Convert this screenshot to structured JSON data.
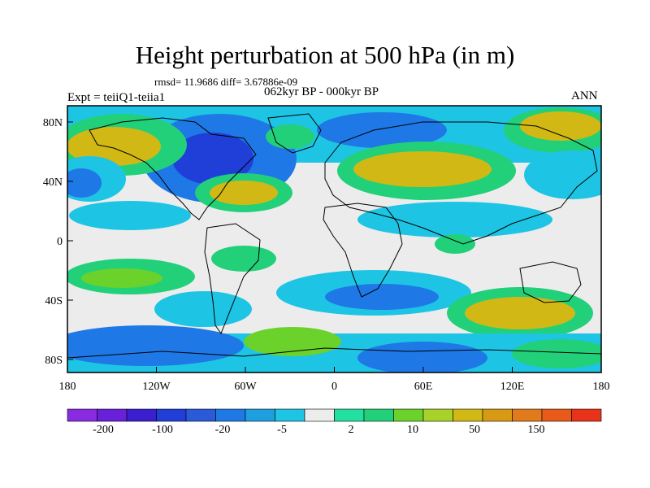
{
  "title": "Height perturbation at 500 hPa (in m)",
  "stats": "rmsd= 11.9686 diff= 3.67886e-09",
  "period": "062kyr BP - 000kyr BP",
  "experiment": "Expt = teiiQ1-teiia1",
  "season": "ANN",
  "y_ticks": [
    "80N",
    "40N",
    "0",
    "40S",
    "80S"
  ],
  "x_ticks": [
    "180",
    "120W",
    "60W",
    "0",
    "60E",
    "120E",
    "180"
  ],
  "colorbar": {
    "labels": [
      "-200",
      "-100",
      "-20",
      "-5",
      "2",
      "10",
      "50",
      "150"
    ],
    "colors": [
      "#8a2be2",
      "#6a1fd8",
      "#3b1fcf",
      "#1f3fd8",
      "#2a5ad8",
      "#1e78e6",
      "#1ea0e0",
      "#1ec4e4",
      "#ececec",
      "#22e0a0",
      "#22d07a",
      "#6ad22a",
      "#a8d22a",
      "#d2b814",
      "#d89a14",
      "#e07a1a",
      "#e85a1a",
      "#e8321a"
    ]
  },
  "map_colors": {
    "neutral": "#ececec",
    "light_blue": "#1ec4e4",
    "mid_blue": "#1e78e6",
    "dark_blue": "#1f3fd8",
    "green": "#22d07a",
    "lime": "#6ad22a",
    "yellow": "#d2b814",
    "coast": "#000000"
  }
}
